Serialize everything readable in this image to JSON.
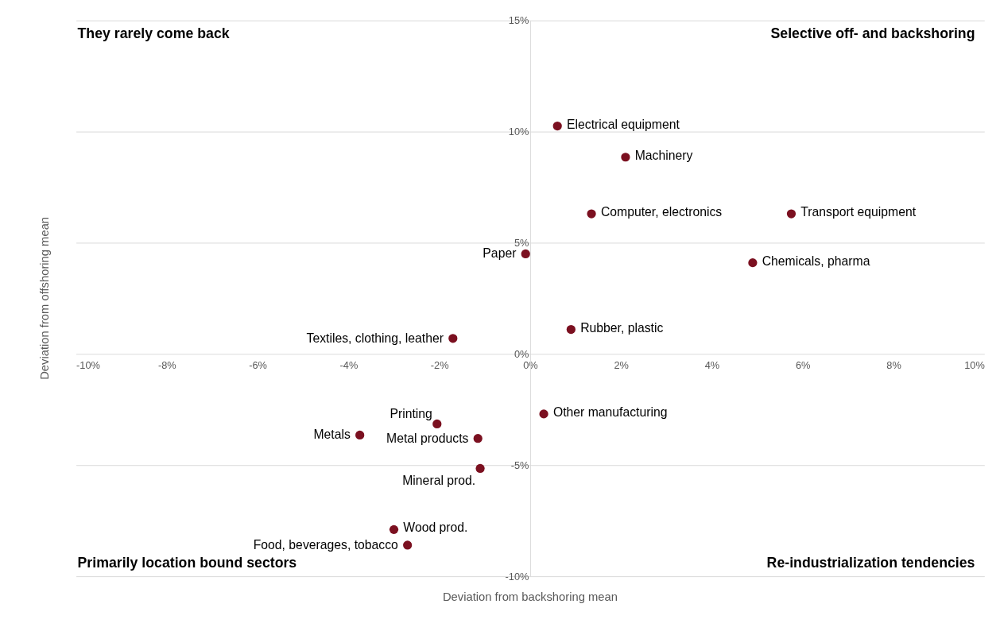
{
  "chart_data": {
    "type": "scatter",
    "xlabel": "Deviation from backshoring mean",
    "ylabel": "Deviation from offshoring mean",
    "series": [
      {
        "name": "Electrical equipment",
        "color": "#7b1020",
        "x": [
          0.6
        ],
        "values": [
          10.25
        ]
      },
      {
        "name": "Machinery",
        "color": "#7b1020",
        "x": [
          2.1
        ],
        "values": [
          8.85
        ]
      },
      {
        "name": "Computer,  electronics",
        "color": "#7b1020",
        "x": [
          1.35
        ],
        "values": [
          6.3
        ]
      },
      {
        "name": "Transport equipment",
        "color": "#7b1020",
        "x": [
          5.75
        ],
        "values": [
          6.3
        ]
      },
      {
        "name": "Paper",
        "color": "#7b1020",
        "x": [
          -0.1
        ],
        "values": [
          4.5
        ]
      },
      {
        "name": "Chemicals,  pharma",
        "color": "#7b1020",
        "x": [
          4.9
        ],
        "values": [
          4.1
        ]
      },
      {
        "name": "Rubber,  plastic",
        "color": "#7b1020",
        "x": [
          0.9
        ],
        "values": [
          1.1
        ]
      },
      {
        "name": "Textiles, clothing, leather",
        "color": "#7b1020",
        "x": [
          -1.7
        ],
        "values": [
          0.7
        ]
      },
      {
        "name": "Other manufacturing",
        "color": "#7b1020",
        "x": [
          0.3
        ],
        "values": [
          -2.7
        ]
      },
      {
        "name": "Printing",
        "color": "#7b1020",
        "x": [
          -2.05
        ],
        "values": [
          -3.15
        ]
      },
      {
        "name": "Metals",
        "color": "#7b1020",
        "x": [
          -3.75
        ],
        "values": [
          -3.65
        ]
      },
      {
        "name": "Metal products",
        "color": "#7b1020",
        "x": [
          -1.15
        ],
        "values": [
          -3.8
        ]
      },
      {
        "name": "Mineral prod.",
        "color": "#7b1020",
        "x": [
          -1.1
        ],
        "values": [
          -5.15
        ]
      },
      {
        "name": "Wood prod.",
        "color": "#7b1020",
        "x": [
          -3.0
        ],
        "values": [
          -7.9
        ]
      },
      {
        "name": "Food, beverages, tobacco",
        "color": "#7b1020",
        "x": [
          -2.7
        ],
        "values": [
          -8.6
        ]
      }
    ],
    "marker": "circle",
    "xlim": [
      -10,
      10
    ],
    "ylim": [
      -10,
      15
    ],
    "xticks": [
      {
        "value": -10,
        "label": "-10%"
      },
      {
        "value": -8,
        "label": "-8%"
      },
      {
        "value": -6,
        "label": "-6%"
      },
      {
        "value": -4,
        "label": "-4%"
      },
      {
        "value": -2,
        "label": "-2%"
      },
      {
        "value": 0,
        "label": "0%"
      },
      {
        "value": 2,
        "label": "2%"
      },
      {
        "value": 4,
        "label": "4%"
      },
      {
        "value": 6,
        "label": "6%"
      },
      {
        "value": 8,
        "label": "8%"
      },
      {
        "value": 10,
        "label": "10%"
      }
    ],
    "yticks": [
      {
        "value": -10,
        "label": "-10%"
      },
      {
        "value": -5,
        "label": "-5%"
      },
      {
        "value": 0,
        "label": "0%"
      },
      {
        "value": 5,
        "label": "5%"
      },
      {
        "value": 10,
        "label": "10%"
      },
      {
        "value": 15,
        "label": "15%"
      }
    ],
    "grid": "y",
    "annotations": [
      "They rarely come back",
      "Selective off- and backshoring",
      "Primarily location bound sectors",
      "Re-industrialization tendencies"
    ]
  }
}
